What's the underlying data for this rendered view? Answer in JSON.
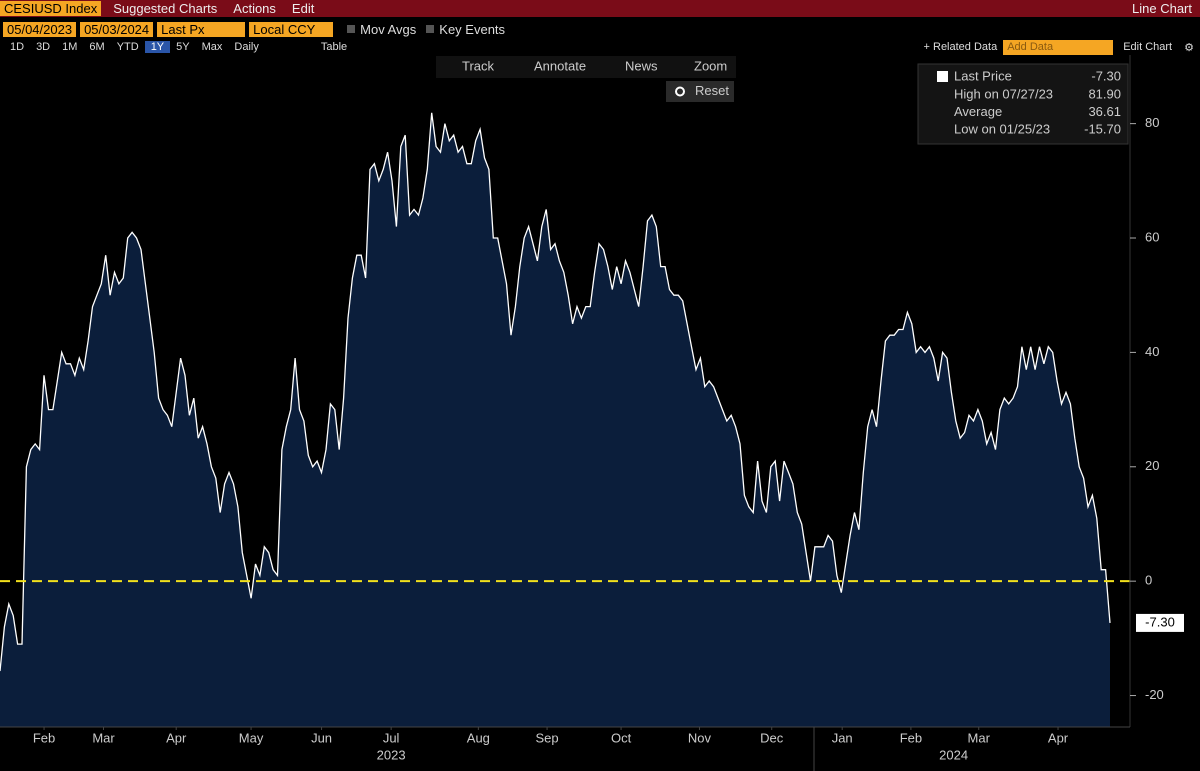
{
  "toolbar": {
    "security": "CESIUSD Index",
    "menus": [
      "Suggested Charts",
      "Actions",
      "Edit"
    ],
    "view": "Line Chart",
    "start_date": "05/04/2023",
    "end_date": "05/03/2024",
    "field": "Last Px",
    "currency": "Local CCY",
    "toggles": [
      "Mov Avgs",
      "Key Events"
    ],
    "periods": [
      "1D",
      "3D",
      "1M",
      "6M",
      "YTD",
      "1Y",
      "5Y",
      "Max"
    ],
    "active_period": "1Y",
    "frequency": "Daily",
    "table": "Table",
    "related": "+ Related Data",
    "add_data": "Add Data",
    "edit_chart": "Edit Chart",
    "chart_tools": [
      "Track",
      "Annotate",
      "News",
      "Zoom"
    ],
    "reset": "Reset"
  },
  "chart_data": {
    "type": "area",
    "series": [
      {
        "name": "Last Price",
        "color": "#ffffff",
        "fill": "#0b1e3b",
        "values": [
          -15.7,
          -8,
          -4,
          -6,
          -11,
          -11,
          20,
          23,
          24,
          23,
          36,
          30,
          30,
          35,
          40,
          38,
          38,
          36,
          39,
          37,
          42,
          48,
          50,
          52,
          57,
          50,
          54,
          52,
          53,
          60,
          61,
          60,
          58,
          52,
          46,
          40,
          32,
          30,
          29,
          27,
          33,
          39,
          36,
          29,
          32,
          25,
          27,
          24,
          20,
          18,
          12,
          17,
          19,
          17,
          13,
          5,
          1,
          -3,
          3,
          1,
          6,
          5,
          2,
          1,
          23,
          27,
          30,
          39,
          30,
          28,
          22,
          20,
          21,
          19,
          23,
          31,
          30,
          23,
          32,
          46,
          53,
          57,
          57,
          53,
          72,
          73,
          70,
          72,
          75,
          70,
          62,
          76,
          78,
          64,
          65,
          64,
          67,
          72,
          81.9,
          76,
          75,
          80,
          77,
          78,
          75,
          76,
          73,
          73,
          77,
          79,
          74,
          72,
          60,
          60,
          56,
          52,
          43,
          48,
          55,
          60,
          62,
          59,
          56,
          62,
          65,
          58,
          59,
          56,
          54,
          50,
          45,
          48,
          46,
          48,
          48,
          54,
          59,
          58,
          55,
          51,
          55,
          52,
          56,
          54,
          51,
          48,
          55,
          63,
          64,
          62,
          55,
          55,
          51,
          50,
          50,
          49,
          45,
          41,
          37,
          39,
          34,
          35,
          34,
          32,
          30,
          28,
          29,
          27,
          24,
          15,
          13,
          12,
          21,
          14,
          12,
          20,
          21,
          14,
          21,
          19,
          17,
          12,
          10,
          5,
          0,
          6,
          6,
          6,
          8,
          7,
          1,
          -2,
          3,
          8,
          12,
          9,
          19,
          27,
          30,
          27,
          35,
          42,
          43,
          43,
          44,
          44,
          47,
          45,
          40,
          41,
          40,
          41,
          39,
          35,
          40,
          39,
          33,
          28,
          25,
          26,
          29,
          28,
          30,
          28,
          24,
          26,
          23,
          30,
          32,
          31,
          32,
          34,
          41,
          37,
          41,
          37,
          41,
          38,
          41,
          40,
          35,
          31,
          33,
          31,
          25,
          20,
          18,
          13,
          15,
          11,
          2,
          2,
          -7.3
        ]
      }
    ],
    "last_value_label": "-7.30",
    "stats": [
      {
        "label": "High on 07/27/23",
        "value": 81.9,
        "value_label": "81.90"
      },
      {
        "label": "Average",
        "value": 36.61,
        "value_label": "36.61"
      },
      {
        "label": "Low on 01/25/23",
        "value": -15.7,
        "value_label": "-15.70"
      }
    ],
    "reference_line": 0,
    "reference_color": "#f2e01c",
    "ylim": [
      -25.5,
      92
    ],
    "yticks": [
      -20,
      0,
      20,
      40,
      60,
      80
    ],
    "xticks": [
      {
        "value": 10,
        "label": "Feb"
      },
      {
        "value": 23.5,
        "label": "Mar"
      },
      {
        "value": 40,
        "label": "Apr"
      },
      {
        "value": 57,
        "label": "May"
      },
      {
        "value": 73,
        "label": "Jun"
      },
      {
        "value": 88.8,
        "label": "Jul"
      },
      {
        "value": 108.6,
        "label": "Aug"
      },
      {
        "value": 124.2,
        "label": "Sep"
      },
      {
        "value": 141,
        "label": "Oct"
      },
      {
        "value": 158.8,
        "label": "Nov"
      },
      {
        "value": 175.2,
        "label": "Dec"
      },
      {
        "value": 191.2,
        "label": "Jan"
      },
      {
        "value": 206.8,
        "label": "Feb"
      },
      {
        "value": 222.2,
        "label": "Mar"
      },
      {
        "value": 240.2,
        "label": "Apr"
      }
    ],
    "year_labels": [
      {
        "value": 88.8,
        "label": "2023"
      },
      {
        "value": 216.5,
        "label": "2024"
      }
    ]
  }
}
